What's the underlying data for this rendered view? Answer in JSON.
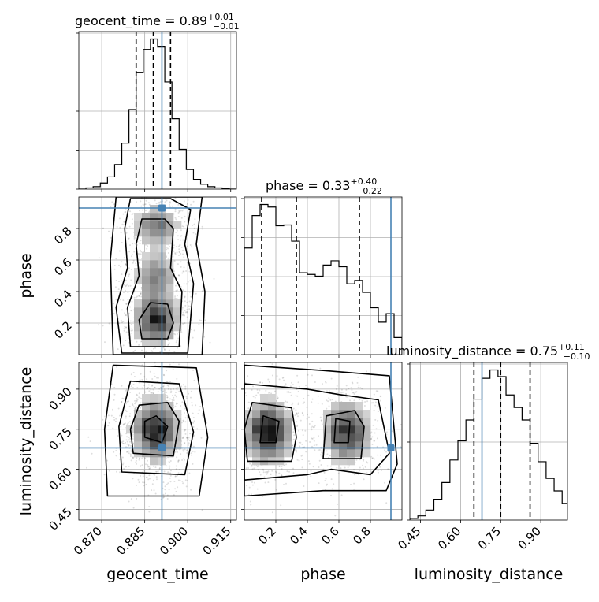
{
  "chart_data": {
    "type": "corner",
    "parameters": [
      {
        "name": "geocent_time",
        "axis_label": "geocent_time",
        "title_prefix": "geocent_time = 0.89",
        "title_sup": "+0.01",
        "title_sub": "−0.01",
        "range": [
          0.862,
          0.917
        ],
        "ticks": [
          0.87,
          0.885,
          0.9,
          0.915
        ],
        "tick_labels": [
          "0.870",
          "0.885",
          "0.900",
          "0.915"
        ],
        "truth": 0.891,
        "quantiles": [
          0.882,
          0.888,
          0.894
        ],
        "hist": {
          "edges": [
            0.862,
            0.8645,
            0.867,
            0.8695,
            0.872,
            0.8745,
            0.877,
            0.8795,
            0.882,
            0.8845,
            0.887,
            0.8895,
            0.892,
            0.8945,
            0.897,
            0.8995,
            0.902,
            0.9045,
            0.907,
            0.9095,
            0.912,
            0.9145,
            0.917
          ],
          "counts": [
            0,
            2,
            4,
            10,
            20,
            40,
            75,
            130,
            190,
            228,
            245,
            232,
            175,
            115,
            65,
            32,
            16,
            8,
            4,
            2,
            1,
            0
          ]
        }
      },
      {
        "name": "phase",
        "axis_label": "phase",
        "title_prefix": "phase = 0.33",
        "title_sup": "+0.40",
        "title_sub": "−0.22",
        "range": [
          0.0,
          1.0
        ],
        "ticks": [
          0.2,
          0.4,
          0.6,
          0.8
        ],
        "tick_labels": [
          "0.2",
          "0.4",
          "0.6",
          "0.8"
        ],
        "truth": 0.93,
        "quantiles": [
          0.11,
          0.33,
          0.73
        ],
        "hist": {
          "edges": [
            0.0,
            0.05,
            0.1,
            0.15,
            0.2,
            0.25,
            0.3,
            0.35,
            0.4,
            0.45,
            0.5,
            0.55,
            0.6,
            0.65,
            0.7,
            0.75,
            0.8,
            0.85,
            0.9,
            0.95,
            1.0
          ],
          "counts": [
            125,
            163,
            176,
            173,
            151,
            152,
            133,
            96,
            94,
            92,
            105,
            110,
            103,
            83,
            87,
            73,
            55,
            38,
            48,
            20
          ]
        }
      },
      {
        "name": "luminosity_distance",
        "axis_label": "luminosity_distance",
        "title_prefix": "luminosity_distance = 0.75",
        "title_sup": "+0.11",
        "title_sub": "−0.10",
        "range": [
          0.41,
          1.0
        ],
        "ticks": [
          0.45,
          0.6,
          0.75,
          0.9
        ],
        "tick_labels": [
          "0.45",
          "0.60",
          "0.75",
          "0.90"
        ],
        "truth": 0.68,
        "quantiles": [
          0.65,
          0.75,
          0.86
        ],
        "hist": {
          "edges": [
            0.41,
            0.44,
            0.47,
            0.5,
            0.53,
            0.56,
            0.59,
            0.62,
            0.65,
            0.68,
            0.71,
            0.74,
            0.77,
            0.8,
            0.83,
            0.86,
            0.89,
            0.92,
            0.95,
            0.98,
            1.01
          ],
          "counts": [
            2,
            5,
            12,
            25,
            45,
            72,
            95,
            120,
            145,
            170,
            180,
            172,
            150,
            135,
            120,
            92,
            70,
            50,
            35,
            20
          ]
        }
      }
    ],
    "pairs": [
      {
        "x": "geocent_time",
        "y": "phase",
        "truth_point": [
          0.891,
          0.93
        ],
        "tick_labels_y": [
          "0.2",
          "0.4",
          "0.6",
          "0.8"
        ]
      },
      {
        "x": "geocent_time",
        "y": "luminosity_distance",
        "truth_point": [
          0.891,
          0.68
        ],
        "tick_labels_y": [
          "0.45",
          "0.60",
          "0.75",
          "0.90"
        ]
      },
      {
        "x": "phase",
        "y": "luminosity_distance",
        "truth_point": [
          0.93,
          0.68
        ]
      }
    ],
    "grid": true,
    "colors": {
      "truth": "#4682b4",
      "lines": "#000000",
      "density": "#000000"
    }
  }
}
